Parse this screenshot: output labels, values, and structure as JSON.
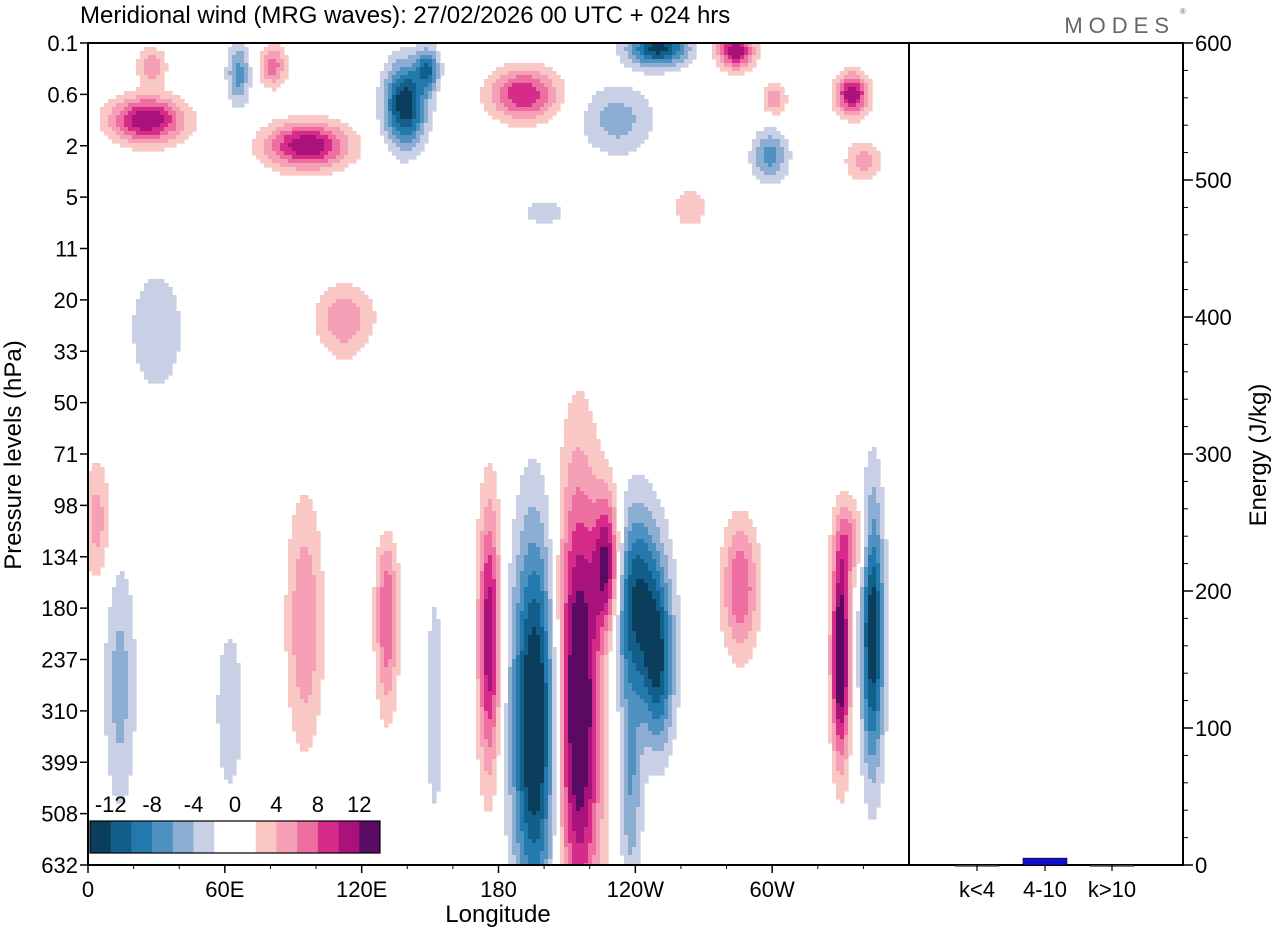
{
  "chart_data": [
    {
      "type": "heatmap",
      "title": "Meridional wind (MRG waves):  27/02/2026  00 UTC  + 024 hrs",
      "brand": "MODES",
      "xlabel": "Longitude",
      "ylabel": "Pressure levels (hPa)",
      "x_ticks": [
        "0",
        "60E",
        "120E",
        "180",
        "120W",
        "60W"
      ],
      "x_tick_degrees": [
        0,
        60,
        120,
        180,
        240,
        300
      ],
      "x_range": [
        0,
        360
      ],
      "y_levels": [
        "0.1",
        "0.6",
        "2",
        "5",
        "11",
        "20",
        "33",
        "50",
        "71",
        "98",
        "134",
        "180",
        "237",
        "310",
        "399",
        "508",
        "632"
      ],
      "colorbar": {
        "labels": [
          "-12",
          "-8",
          "-4",
          "0",
          "4",
          "8",
          "12"
        ],
        "colors": [
          "#0b3d5c",
          "#135f8b",
          "#2479ac",
          "#4f92c2",
          "#8daed3",
          "#c9cfe4",
          "#ffffff",
          "#ffffff",
          "#f9c7c4",
          "#f5a0b6",
          "#ec6fa0",
          "#d62b89",
          "#a8127a",
          "#5b0a63"
        ]
      },
      "blobs": [
        {
          "lon": 196,
          "lev": 13.2,
          "rx": 10,
          "ry": 3.6,
          "v": -16
        },
        {
          "lon": 215,
          "lev": 12.8,
          "rx": 10,
          "ry": 4.2,
          "v": 16
        },
        {
          "lon": 228,
          "lev": 10.2,
          "rx": 6,
          "ry": 1.4,
          "v": 14
        },
        {
          "lon": 176,
          "lev": 11.6,
          "rx": 5,
          "ry": 2.6,
          "v": 12
        },
        {
          "lon": 240,
          "lev": 10.8,
          "rx": 12,
          "ry": 1.8,
          "v": -12
        },
        {
          "lon": 250,
          "lev": 12.2,
          "rx": 7,
          "ry": 1.6,
          "v": -10
        },
        {
          "lon": 238,
          "lev": 14.4,
          "rx": 5,
          "ry": 2.2,
          "v": -6
        },
        {
          "lon": 286,
          "lev": 10.6,
          "rx": 8,
          "ry": 1.3,
          "v": 8
        },
        {
          "lon": 330,
          "lev": 11.9,
          "rx": 4,
          "ry": 2.0,
          "v": 16
        },
        {
          "lon": 344,
          "lev": 11.5,
          "rx": 5,
          "ry": 2.6,
          "v": -14
        },
        {
          "lon": 131,
          "lev": 11.1,
          "rx": 5,
          "ry": 1.9,
          "v": 8
        },
        {
          "lon": 95,
          "lev": 11.3,
          "rx": 8,
          "ry": 2.4,
          "v": 6
        },
        {
          "lon": 14,
          "lev": 12.5,
          "rx": 7,
          "ry": 2.4,
          "v": -5
        },
        {
          "lon": 4,
          "lev": 9.3,
          "rx": 6,
          "ry": 1.2,
          "v": 5
        },
        {
          "lon": 152,
          "lev": 12.9,
          "rx": 5,
          "ry": 3.0,
          "v": -3
        },
        {
          "lon": 62,
          "lev": 13.0,
          "rx": 8,
          "ry": 2.2,
          "v": -3
        },
        {
          "lon": 30,
          "lev": 5.6,
          "rx": 16,
          "ry": 1.6,
          "v": -3
        },
        {
          "lon": 113,
          "lev": 5.3,
          "rx": 16,
          "ry": 0.6,
          "v": 3
        },
        {
          "lon": 131,
          "lev": 8.7,
          "rx": 6,
          "ry": 1.2,
          "v": -3
        },
        {
          "lon": 26,
          "lev": 1.5,
          "rx": 16,
          "ry": 0.45,
          "v": 12
        },
        {
          "lon": 96,
          "lev": 2.0,
          "rx": 18,
          "ry": 0.45,
          "v": 12
        },
        {
          "lon": 139,
          "lev": 1.2,
          "rx": 9,
          "ry": 0.8,
          "v": -14
        },
        {
          "lon": 149,
          "lev": 0.5,
          "rx": 5,
          "ry": 0.4,
          "v": -9
        },
        {
          "lon": 191,
          "lev": 1.0,
          "rx": 15,
          "ry": 0.5,
          "v": 10
        },
        {
          "lon": 232,
          "lev": 1.5,
          "rx": 16,
          "ry": 0.7,
          "v": -5
        },
        {
          "lon": 250,
          "lev": 0.1,
          "rx": 13,
          "ry": 0.35,
          "v": -13
        },
        {
          "lon": 284,
          "lev": 0.15,
          "rx": 8,
          "ry": 0.35,
          "v": 12
        },
        {
          "lon": 301,
          "lev": 1.1,
          "rx": 5,
          "ry": 0.3,
          "v": 6
        },
        {
          "lon": 335,
          "lev": 1.0,
          "rx": 7,
          "ry": 0.4,
          "v": 12
        },
        {
          "lon": 299,
          "lev": 2.2,
          "rx": 8,
          "ry": 0.5,
          "v": -7
        },
        {
          "lon": 66,
          "lev": 0.6,
          "rx": 5,
          "ry": 0.6,
          "v": -7
        },
        {
          "lon": 81,
          "lev": 0.45,
          "rx": 6,
          "ry": 0.4,
          "v": 7
        },
        {
          "lon": 28,
          "lev": 0.45,
          "rx": 6,
          "ry": 0.35,
          "v": 6
        },
        {
          "lon": 264,
          "lev": 3.2,
          "rx": 10,
          "ry": 0.5,
          "v": 3
        },
        {
          "lon": 340,
          "lev": 2.3,
          "rx": 8,
          "ry": 0.4,
          "v": 5
        },
        {
          "lon": 112,
          "lev": 5.5,
          "rx": 10,
          "ry": 0.8,
          "v": 3
        },
        {
          "lon": 200,
          "lev": 3.3,
          "rx": 12,
          "ry": 0.3,
          "v": -3
        },
        {
          "lon": 335,
          "lev": 9.7,
          "rx": 7,
          "ry": 0.8,
          "v": 6
        }
      ]
    },
    {
      "type": "bar",
      "ylabel": "Energy (J/kg)",
      "categories": [
        "k<4",
        "4-10",
        "k>10"
      ],
      "values": [
        0,
        5,
        0
      ],
      "ylim": [
        0,
        600
      ],
      "y_ticks": [
        0,
        100,
        200,
        300,
        400,
        500,
        600
      ],
      "bar_color": "#1010d0"
    }
  ]
}
